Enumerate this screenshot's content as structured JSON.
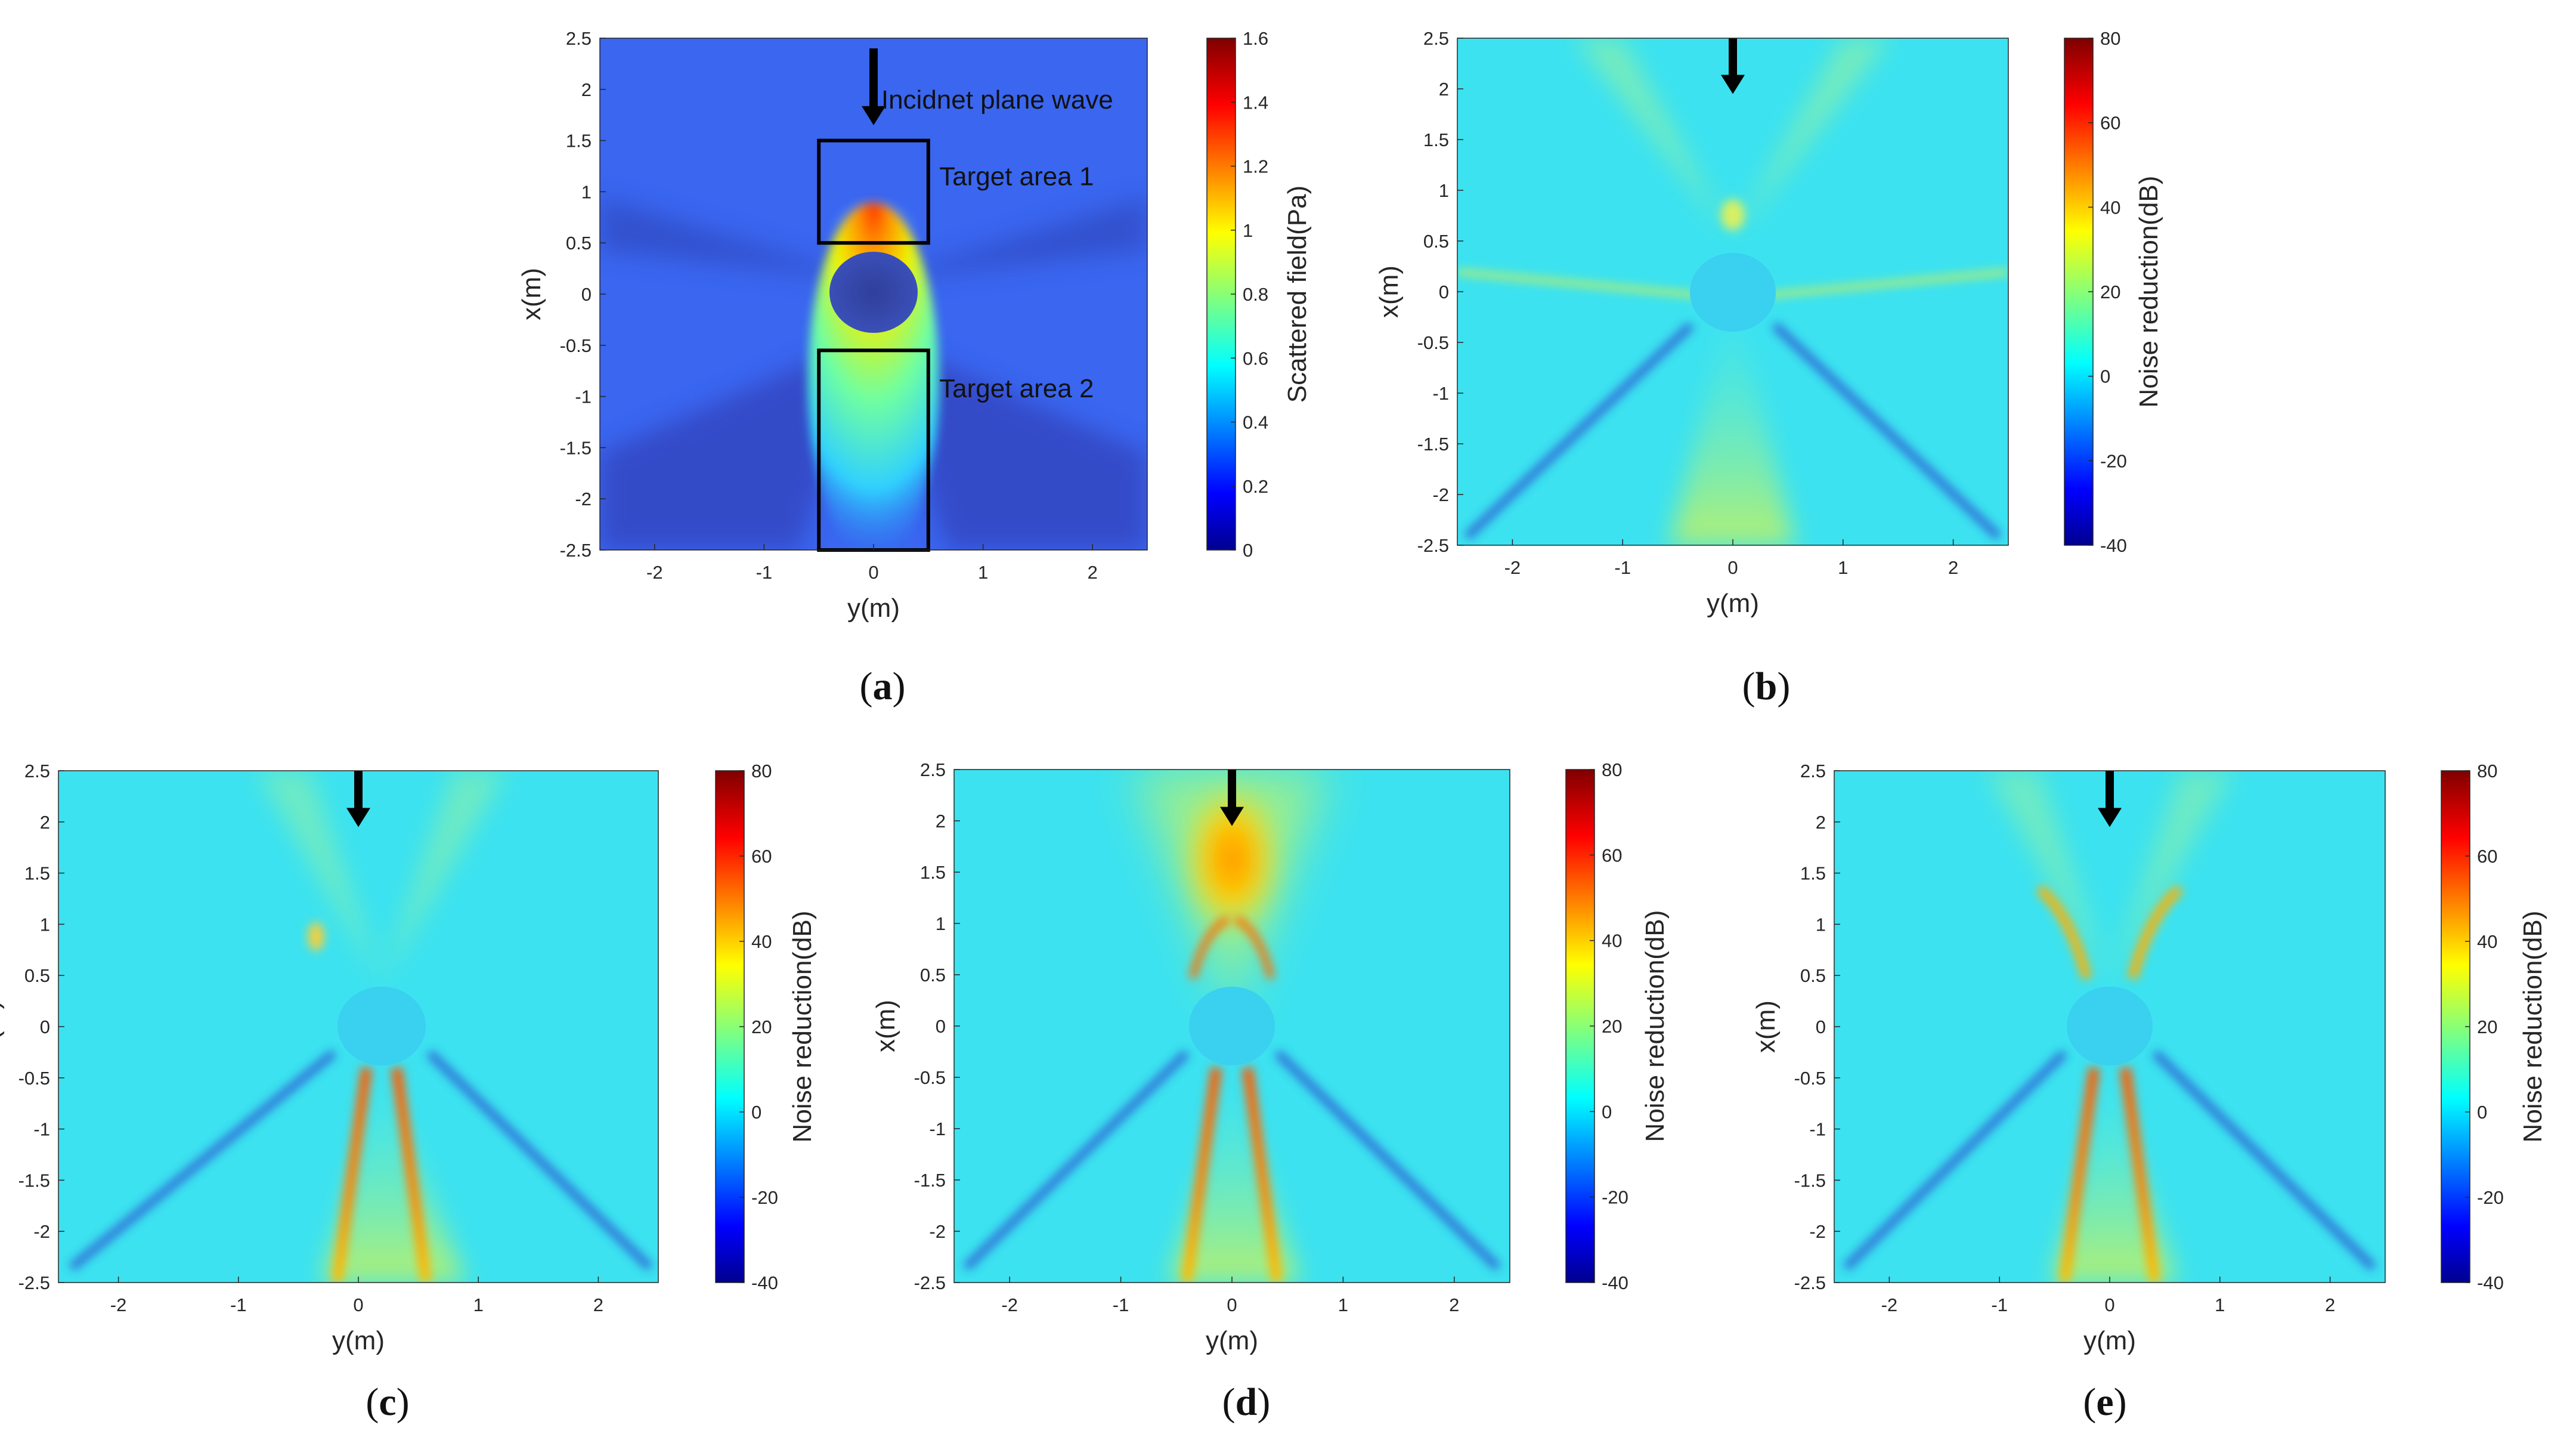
{
  "figure": "Scattered field and noise reduction maps",
  "colors": {
    "jet_low": "#00008f",
    "jet_high": "#7f0000",
    "frame": "#000000"
  },
  "chart_data": [
    {
      "id": "a",
      "caption": "a",
      "type": "heatmap",
      "xlabel": "y(m)",
      "ylabel": "x(m)",
      "xlim": [
        -2.5,
        2.5
      ],
      "ylim": [
        -2.5,
        2.5
      ],
      "xticks": [
        "-2",
        "-1",
        "0",
        "1",
        "2"
      ],
      "xtick_values": [
        -2,
        -1,
        0,
        1,
        2
      ],
      "yticks": [
        "2.5",
        "2",
        "1.5",
        "1",
        "0.5",
        "0",
        "-0.5",
        "-1",
        "-1.5",
        "-2",
        "-2.5"
      ],
      "ytick_values": [
        2.5,
        2,
        1.5,
        1,
        0.5,
        0,
        -0.5,
        -1,
        -1.5,
        -2,
        -2.5
      ],
      "colorbar": {
        "label": "Scattered field(Pa)",
        "range": [
          0,
          1.6
        ],
        "ticks": [
          "1.6",
          "1.4",
          "1.2",
          "1",
          "0.8",
          "0.6",
          "0.4",
          "0.2",
          "0"
        ],
        "tick_values": [
          1.6,
          1.4,
          1.2,
          1,
          0.8,
          0.6,
          0.4,
          0.2,
          0
        ]
      },
      "scatterer": {
        "center_y": 0,
        "center_x": 0,
        "radius": 0.4
      },
      "annotations": [
        {
          "text": "Incidnet plane wave",
          "y": 0.07,
          "x": 1.9
        },
        {
          "text": "Target area 1",
          "y": 0.6,
          "x": 1.15
        },
        {
          "text": "Target area 2",
          "y": 0.6,
          "x": -0.92
        }
      ],
      "target_areas": [
        {
          "name": "Target area 1",
          "y_range": [
            -0.5,
            0.5
          ],
          "x_range": [
            0.5,
            1.5
          ]
        },
        {
          "name": "Target area 2",
          "y_range": [
            -0.5,
            0.5
          ],
          "x_range": [
            -2.5,
            -0.55
          ]
        }
      ],
      "arrow": {
        "y": 0,
        "x_from": 2.4,
        "x_to": 1.65
      }
    },
    {
      "id": "b",
      "caption": "b",
      "type": "heatmap",
      "xlabel": "y(m)",
      "ylabel": "x(m)",
      "xlim": [
        -2.5,
        2.5
      ],
      "ylim": [
        -2.5,
        2.5
      ],
      "xticks": [
        "-2",
        "-1",
        "0",
        "1",
        "2"
      ],
      "xtick_values": [
        -2,
        -1,
        0,
        1,
        2
      ],
      "yticks": [
        "2.5",
        "2",
        "1.5",
        "1",
        "0.5",
        "0",
        "-0.5",
        "-1",
        "-1.5",
        "-2",
        "-2.5"
      ],
      "ytick_values": [
        2.5,
        2,
        1.5,
        1,
        0.5,
        0,
        -0.5,
        -1,
        -1.5,
        -2,
        -2.5
      ],
      "colorbar": {
        "label": "Noise reduction(dB)",
        "range": [
          -40,
          80
        ],
        "ticks": [
          "80",
          "60",
          "40",
          "20",
          "0",
          "-20",
          "-40"
        ],
        "tick_values": [
          80,
          60,
          40,
          20,
          0,
          -20,
          -40
        ]
      },
      "scatterer": {
        "center_y": 0,
        "center_x": 0,
        "radius": 0.4
      },
      "arrow": {
        "y": 0,
        "x_from": 2.5,
        "x_to": 1.95
      }
    },
    {
      "id": "c",
      "caption": "c",
      "type": "heatmap",
      "xlabel": "y(m)",
      "ylabel": "x(m)",
      "xlim": [
        -2.5,
        2.5
      ],
      "ylim": [
        -2.5,
        2.5
      ],
      "xticks": [
        "-2",
        "-1",
        "0",
        "1",
        "2"
      ],
      "xtick_values": [
        -2,
        -1,
        0,
        1,
        2
      ],
      "yticks": [
        "2.5",
        "2",
        "1.5",
        "1",
        "0.5",
        "0",
        "-0.5",
        "-1",
        "-1.5",
        "-2",
        "-2.5"
      ],
      "ytick_values": [
        2.5,
        2,
        1.5,
        1,
        0.5,
        0,
        -0.5,
        -1,
        -1.5,
        -2,
        -2.5
      ],
      "colorbar": {
        "label": "Noise reduction(dB)",
        "range": [
          -40,
          80
        ],
        "ticks": [
          "80",
          "60",
          "40",
          "20",
          "0",
          "-20",
          "-40"
        ],
        "tick_values": [
          80,
          60,
          40,
          20,
          0,
          -20,
          -40
        ]
      },
      "scatterer": {
        "center_y": 0,
        "center_x": 0,
        "radius": 0.4
      },
      "arrow": {
        "y": 0,
        "x_from": 2.5,
        "x_to": 1.95
      }
    },
    {
      "id": "d",
      "caption": "d",
      "type": "heatmap",
      "xlabel": "y(m)",
      "ylabel": "x(m)",
      "xlim": [
        -2.5,
        2.5
      ],
      "ylim": [
        -2.5,
        2.5
      ],
      "xticks": [
        "-2",
        "-1",
        "0",
        "1",
        "2"
      ],
      "xtick_values": [
        -2,
        -1,
        0,
        1,
        2
      ],
      "yticks": [
        "2.5",
        "2",
        "1.5",
        "1",
        "0.5",
        "0",
        "-0.5",
        "-1",
        "-1.5",
        "-2",
        "-2.5"
      ],
      "ytick_values": [
        2.5,
        2,
        1.5,
        1,
        0.5,
        0,
        -0.5,
        -1,
        -1.5,
        -2,
        -2.5
      ],
      "colorbar": {
        "label": "Noise reduction(dB)",
        "range": [
          -40,
          80
        ],
        "ticks": [
          "80",
          "60",
          "40",
          "20",
          "0",
          "-20",
          "-40"
        ],
        "tick_values": [
          80,
          60,
          40,
          20,
          0,
          -20,
          -40
        ]
      },
      "scatterer": {
        "center_y": 0,
        "center_x": 0,
        "radius": 0.4
      },
      "arrow": {
        "y": 0,
        "x_from": 2.5,
        "x_to": 1.95
      }
    },
    {
      "id": "e",
      "caption": "e",
      "type": "heatmap",
      "xlabel": "y(m)",
      "ylabel": "x(m)",
      "xlim": [
        -2.5,
        2.5
      ],
      "ylim": [
        -2.5,
        2.5
      ],
      "xticks": [
        "-2",
        "-1",
        "0",
        "1",
        "2"
      ],
      "xtick_values": [
        -2,
        -1,
        0,
        1,
        2
      ],
      "yticks": [
        "2.5",
        "2",
        "1.5",
        "1",
        "0.5",
        "0",
        "-0.5",
        "-1",
        "-1.5",
        "-2",
        "-2.5"
      ],
      "ytick_values": [
        2.5,
        2,
        1.5,
        1,
        0.5,
        0,
        -0.5,
        -1,
        -1.5,
        -2,
        -2.5
      ],
      "colorbar": {
        "label": "Noise reduction(dB)",
        "range": [
          -40,
          80
        ],
        "ticks": [
          "80",
          "60",
          "40",
          "20",
          "0",
          "-20",
          "-40"
        ],
        "tick_values": [
          80,
          60,
          40,
          20,
          0,
          -20,
          -40
        ]
      },
      "scatterer": {
        "center_y": 0,
        "center_x": 0,
        "radius": 0.4
      },
      "arrow": {
        "y": 0,
        "x_from": 2.5,
        "x_to": 1.95
      }
    }
  ]
}
